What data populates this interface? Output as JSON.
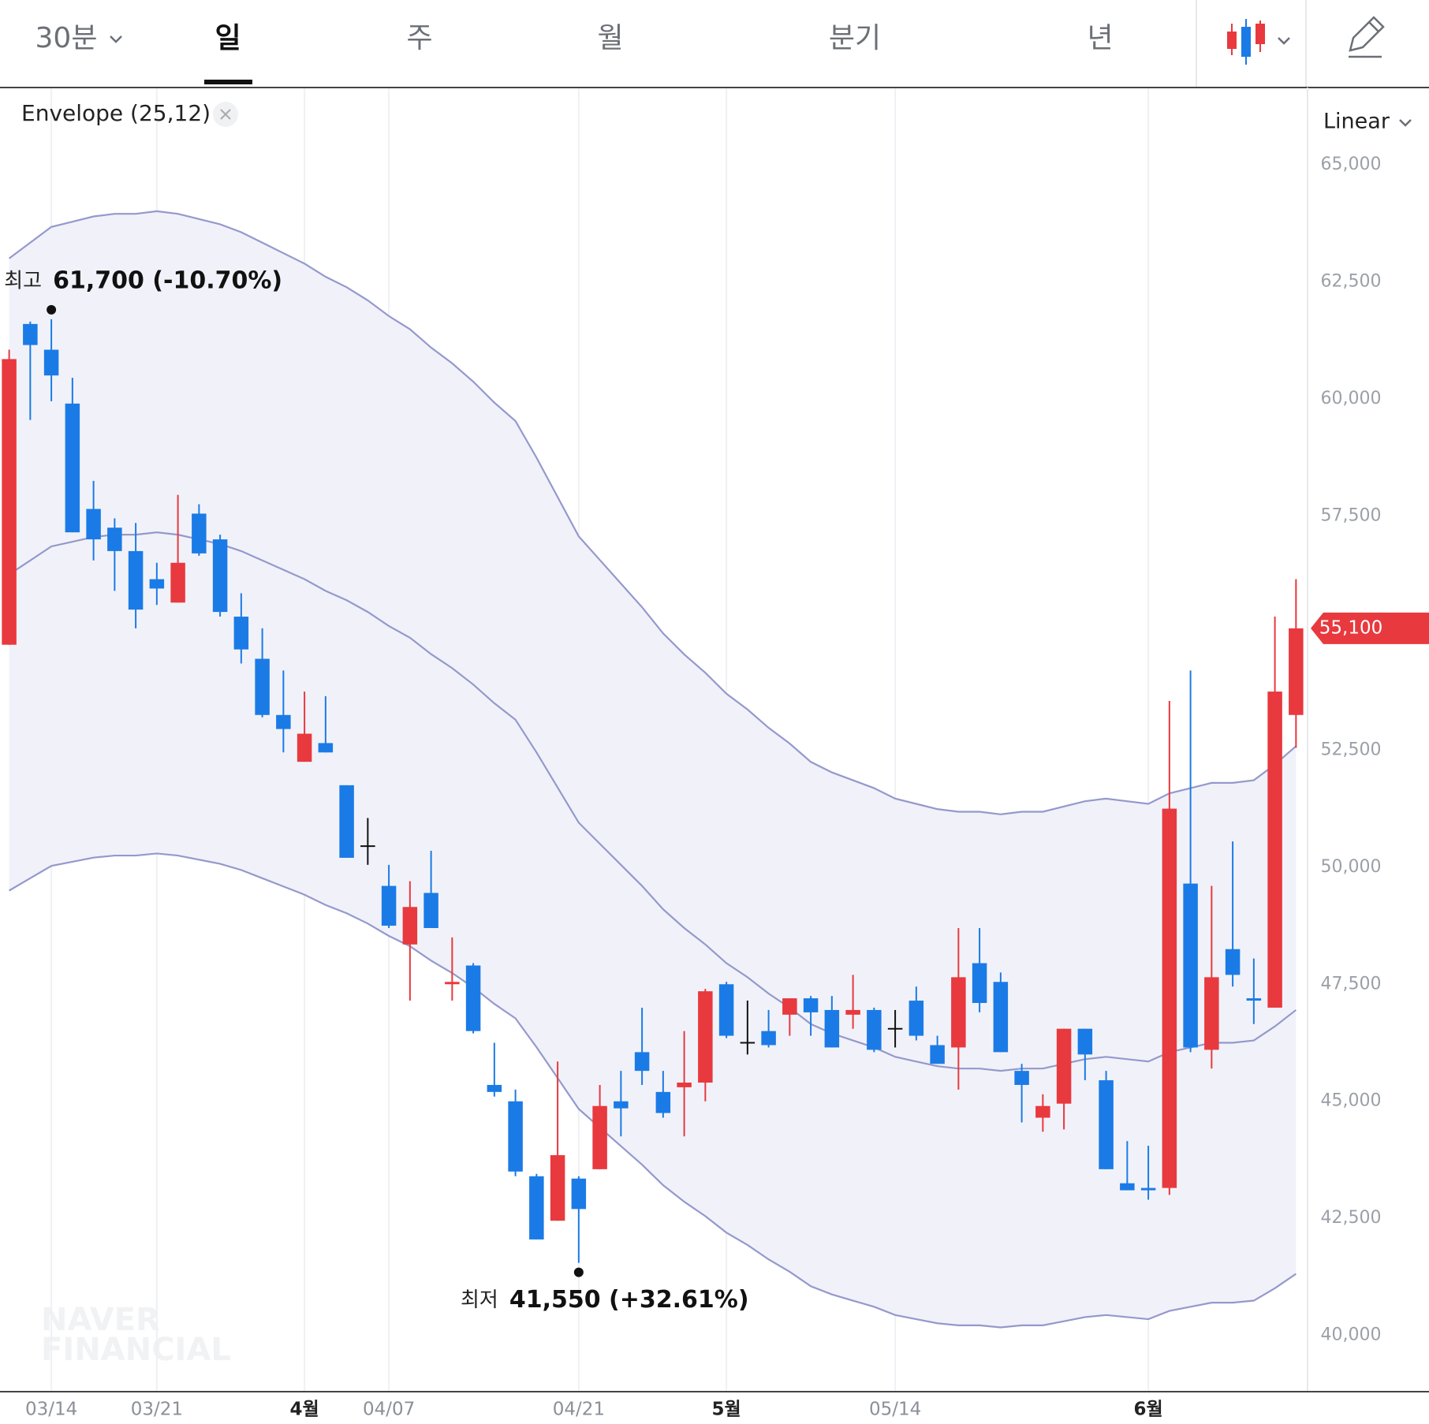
{
  "tabs": [
    "30분",
    "일",
    "주",
    "월",
    "분기",
    "년"
  ],
  "chart_data": {
    "type": "candlestick",
    "indicator_label": "Envelope (25,12)",
    "scale_label": "Linear",
    "log_scale": false,
    "watermark": [
      "NAVER",
      "FINANCIAL"
    ],
    "up_color": "#e8393e",
    "down_color": "#1b7be6",
    "flat_color": "#111111",
    "envelope_color": "#9499cc",
    "envelope_fill": "#f1f2f9",
    "categories": [
      null,
      null,
      "03/14",
      null,
      null,
      null,
      null,
      "03/21",
      null,
      null,
      null,
      null,
      null,
      null,
      "4월",
      null,
      null,
      null,
      "04/07",
      null,
      null,
      null,
      null,
      null,
      null,
      null,
      null,
      "04/21",
      null,
      null,
      null,
      null,
      null,
      null,
      "5월",
      null,
      null,
      null,
      null,
      null,
      null,
      null,
      "05/14",
      null,
      null,
      null,
      null,
      null,
      null,
      null,
      null,
      null,
      null,
      null,
      "6월",
      null,
      null,
      null,
      null,
      null,
      null,
      null
    ],
    "open": [
      54750,
      61600,
      61050,
      59900,
      57650,
      57250,
      56750,
      56150,
      55650,
      57550,
      57000,
      55350,
      54450,
      53250,
      52250,
      52650,
      51750,
      50450,
      49600,
      48350,
      49450,
      47500,
      47900,
      45350,
      45000,
      43400,
      42450,
      43350,
      43550,
      45000,
      46050,
      45200,
      45300,
      45400,
      47500,
      46250,
      46500,
      46850,
      47200,
      46950,
      46850,
      46950,
      46550,
      47150,
      46200,
      46150,
      47950,
      47550,
      45650,
      44650,
      44950,
      46550,
      45450,
      43250,
      43150,
      43150,
      49650,
      46100,
      48250,
      47200,
      47000,
      53250
    ],
    "high": [
      61050,
      61650,
      61700,
      60450,
      58250,
      57450,
      57350,
      56500,
      57950,
      57750,
      57100,
      55850,
      55100,
      54200,
      53750,
      53650,
      51750,
      51050,
      50050,
      49700,
      50350,
      48500,
      47950,
      46250,
      45250,
      43450,
      45850,
      43400,
      45350,
      45650,
      47000,
      45650,
      46500,
      47400,
      47550,
      47150,
      46950,
      47200,
      47250,
      47250,
      47700,
      47000,
      46950,
      47450,
      46400,
      48700,
      48700,
      47750,
      45800,
      45150,
      46550,
      46550,
      45650,
      44150,
      44050,
      53550,
      54200,
      49600,
      50550,
      48050,
      55350,
      56150
    ],
    "low": [
      54750,
      59550,
      59950,
      57150,
      56550,
      55900,
      55100,
      55600,
      55650,
      56650,
      55350,
      54350,
      53200,
      52450,
      52250,
      52450,
      50200,
      50050,
      48700,
      47150,
      48700,
      47150,
      46450,
      45100,
      43400,
      42050,
      42450,
      41550,
      43550,
      44250,
      45350,
      44650,
      44250,
      45000,
      46350,
      46000,
      46150,
      46400,
      46400,
      46150,
      46550,
      46050,
      46150,
      46300,
      45800,
      45250,
      46900,
      46050,
      44550,
      44350,
      44400,
      45450,
      43550,
      43100,
      42900,
      43000,
      46050,
      45700,
      47450,
      46650,
      47000,
      52550
    ],
    "close": [
      60850,
      61150,
      60500,
      57150,
      57000,
      56750,
      55500,
      55950,
      56500,
      56700,
      55450,
      54650,
      53250,
      52950,
      52850,
      52450,
      50200,
      50450,
      48750,
      49150,
      48700,
      47550,
      46500,
      45200,
      43500,
      42050,
      43850,
      42700,
      44900,
      44850,
      45650,
      44750,
      45400,
      47350,
      46400,
      46250,
      46200,
      47200,
      46900,
      46150,
      46950,
      46100,
      46550,
      46400,
      45800,
      47650,
      47100,
      46050,
      45350,
      44900,
      46550,
      46000,
      43550,
      43100,
      43100,
      51250,
      46150,
      47650,
      47700,
      47150,
      53750,
      55100
    ],
    "middle": [
      56250,
      56550,
      56850,
      56950,
      57050,
      57100,
      57100,
      57150,
      57100,
      57000,
      56900,
      56750,
      56550,
      56350,
      56150,
      55900,
      55700,
      55450,
      55150,
      54900,
      54550,
      54250,
      53900,
      53500,
      53150,
      52450,
      51700,
      50950,
      50500,
      50050,
      49600,
      49100,
      48700,
      48350,
      47950,
      47650,
      47300,
      47000,
      46650,
      46450,
      46300,
      46150,
      45950,
      45850,
      45750,
      45700,
      45700,
      45650,
      45700,
      45700,
      45800,
      45900,
      45950,
      45900,
      45850,
      46050,
      46150,
      46250,
      46250,
      46300,
      46600,
      46950
    ],
    "upper": [
      63000,
      63336,
      63672,
      63784,
      63896,
      63952,
      63952,
      64008,
      63952,
      63840,
      63728,
      63560,
      63336,
      63112,
      62888,
      62608,
      62384,
      62104,
      61768,
      61488,
      61096,
      60760,
      60368,
      59920,
      59528,
      58744,
      57904,
      57064,
      56560,
      56056,
      55552,
      54992,
      54544,
      54152,
      53704,
      53368,
      52976,
      52640,
      52248,
      52024,
      51856,
      51688,
      51464,
      51352,
      51240,
      51184,
      51184,
      51128,
      51184,
      51184,
      51296,
      51408,
      51464,
      51408,
      51352,
      51576,
      51688,
      51800,
      51800,
      51856,
      52192,
      52584
    ],
    "lower": [
      49500,
      49764,
      50028,
      50116,
      50204,
      50248,
      50248,
      50292,
      50248,
      50160,
      50072,
      49940,
      49764,
      49588,
      49412,
      49192,
      49016,
      48796,
      48532,
      48312,
      48004,
      47740,
      47432,
      47080,
      46772,
      46156,
      45496,
      44836,
      44440,
      44044,
      43648,
      43208,
      42856,
      42548,
      42196,
      41932,
      41624,
      41360,
      41052,
      40876,
      40744,
      40612,
      40436,
      40348,
      40260,
      40216,
      40216,
      40172,
      40216,
      40216,
      40304,
      40392,
      40436,
      40392,
      40348,
      40524,
      40612,
      40700,
      40700,
      40744,
      41008,
      41316
    ],
    "ylim": [
      38850,
      65600
    ],
    "yticks": [
      {
        "value": 40000,
        "label": "40,000"
      },
      {
        "value": 42500,
        "label": "42,500"
      },
      {
        "value": 45000,
        "label": "45,000"
      },
      {
        "value": 47500,
        "label": "47,500"
      },
      {
        "value": 50000,
        "label": "50,000"
      },
      {
        "value": 52500,
        "label": "52,500"
      },
      {
        "value": 55000,
        "label": "55,000"
      },
      {
        "value": 57500,
        "label": "57,500"
      },
      {
        "value": 60000,
        "label": "60,000"
      },
      {
        "value": 62500,
        "label": "62,500"
      },
      {
        "value": 65000,
        "label": "65,000"
      }
    ],
    "last_price": {
      "value": 55100,
      "label": "55,100"
    },
    "annotations": [
      {
        "label": "최고",
        "text": "61,700 (-10.70%)",
        "value": 61700,
        "field": "high"
      },
      {
        "label": "최저",
        "text": "41,550 (+32.61%)",
        "value": 41550,
        "field": "low"
      }
    ]
  }
}
